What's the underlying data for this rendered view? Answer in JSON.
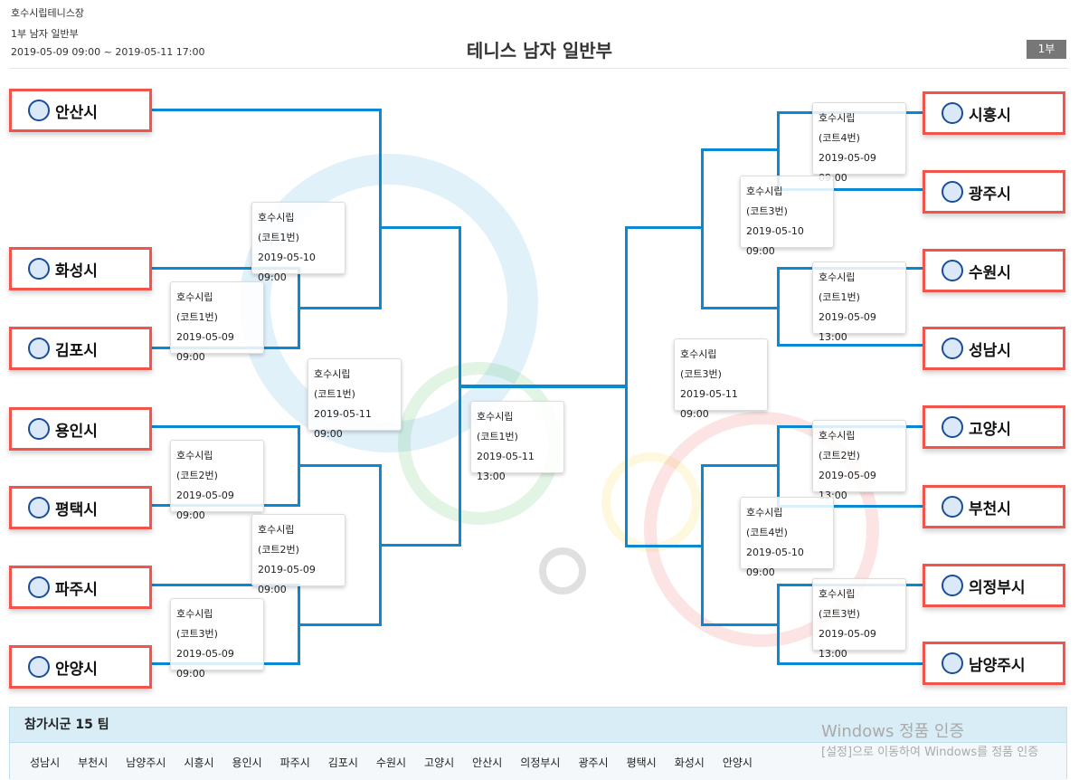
{
  "header": {
    "venue": "호수시립테니스장",
    "division": "1부 남자 일반부",
    "period": "2019-05-09 09:00 ~ 2019-05-11 17:00",
    "title": "테니스 남자 일반부",
    "badge": "1부"
  },
  "left_teams": [
    "안산시",
    "화성시",
    "김포시",
    "용인시",
    "평택시",
    "파주시",
    "안양시"
  ],
  "right_teams": [
    "시흥시",
    "광주시",
    "수원시",
    "성남시",
    "고양시",
    "부천시",
    "의정부시",
    "남양주시"
  ],
  "matches": [
    {
      "venue": "호수시립",
      "court": "(코트1번)",
      "time": "2019-05-10 09:00"
    },
    {
      "venue": "호수시립",
      "court": "(코트1번)",
      "time": "2019-05-09 09:00"
    },
    {
      "venue": "호수시립",
      "court": "(코트1번)",
      "time": "2019-05-11 09:00"
    },
    {
      "venue": "호수시립",
      "court": "(코트2번)",
      "time": "2019-05-09 09:00"
    },
    {
      "venue": "호수시립",
      "court": "(코트2번)",
      "time": "2019-05-09 09:00"
    },
    {
      "venue": "호수시립",
      "court": "(코트3번)",
      "time": "2019-05-09 09:00"
    },
    {
      "venue": "호수시립",
      "court": "(코트1번)",
      "time": "2019-05-11 13:00"
    },
    {
      "venue": "호수시립",
      "court": "(코트4번)",
      "time": "2019-05-09 09:00"
    },
    {
      "venue": "호수시립",
      "court": "(코트3번)",
      "time": "2019-05-10 09:00"
    },
    {
      "venue": "호수시립",
      "court": "(코트1번)",
      "time": "2019-05-09 13:00"
    },
    {
      "venue": "호수시립",
      "court": "(코트3번)",
      "time": "2019-05-11 09:00"
    },
    {
      "venue": "호수시립",
      "court": "(코트2번)",
      "time": "2019-05-09 13:00"
    },
    {
      "venue": "호수시립",
      "court": "(코트4번)",
      "time": "2019-05-10 09:00"
    },
    {
      "venue": "호수시립",
      "court": "(코트3번)",
      "time": "2019-05-09 13:00"
    }
  ],
  "footer": {
    "title": "참가시군 15 팀",
    "teams": [
      "성남시",
      "부천시",
      "남양주시",
      "시흥시",
      "용인시",
      "파주시",
      "김포시",
      "수원시",
      "고양시",
      "안산시",
      "의정부시",
      "광주시",
      "평택시",
      "화성시",
      "안양시"
    ]
  },
  "windows_notice": {
    "title": "Windows 정품 인증",
    "text": "[설정]으로 이동하여 Windows를 정품 인증"
  },
  "colors": {
    "line": "#0a88d4",
    "team_border": "#f0544a",
    "footer_head": "#d9edf7"
  }
}
